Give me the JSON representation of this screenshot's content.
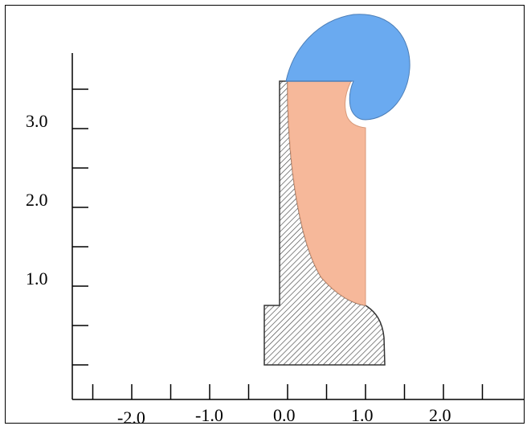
{
  "chart_data": {
    "type": "diagram",
    "x_axis": {
      "tick_labels": [
        "-2.0",
        "-1.0",
        "0.0",
        "1.0",
        "2.0"
      ],
      "tick_values": [
        -2.0,
        -1.0,
        0.0,
        1.0,
        2.0
      ]
    },
    "y_axis": {
      "tick_labels": [
        "1.0",
        "2.0",
        "3.0"
      ],
      "tick_values": [
        1.0,
        2.0,
        3.0
      ]
    },
    "regions": [
      {
        "name": "hatched-solid",
        "fill": "hatch",
        "color": "#555555"
      },
      {
        "name": "orange-region",
        "color": "#f6b89a"
      },
      {
        "name": "blue-region",
        "color": "#6aaaf0"
      }
    ]
  }
}
